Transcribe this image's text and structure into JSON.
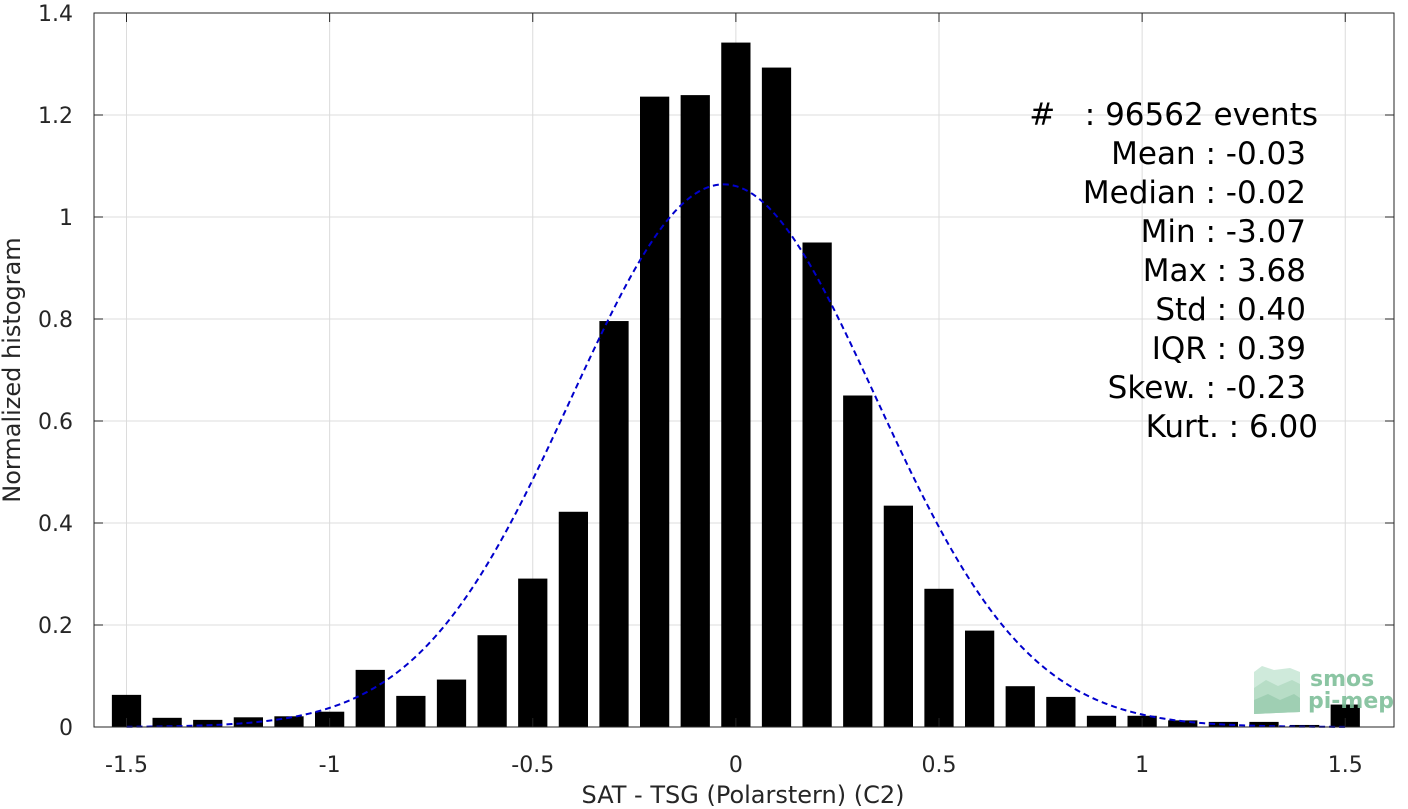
{
  "chart_data": {
    "type": "bar",
    "xlabel": "SAT - TSG (Polarstern) (C2)",
    "ylabel": "Normalized histogram",
    "xlim": [
      -1.58,
      1.62
    ],
    "ylim": [
      0,
      1.4
    ],
    "xticks": [
      -1.5,
      -1,
      -0.5,
      0,
      0.5,
      1,
      1.5
    ],
    "xtick_labels": [
      "-1.5",
      "-1",
      "-0.5",
      "0",
      "0.5",
      "1",
      "1.5"
    ],
    "yticks": [
      0,
      0.2,
      0.4,
      0.6,
      0.8,
      1,
      1.2,
      1.4
    ],
    "ytick_labels": [
      "0",
      "0.2",
      "0.4",
      "0.6",
      "0.8",
      "1",
      "1.2",
      "1.4"
    ],
    "grid": true,
    "bar_color": "#000000",
    "fit_color": "#0000cc",
    "bin_width": 0.1,
    "x": [
      -1.5,
      -1.4,
      -1.3,
      -1.2,
      -1.1,
      -1.0,
      -0.9,
      -0.8,
      -0.7,
      -0.6,
      -0.5,
      -0.4,
      -0.3,
      -0.2,
      -0.1,
      0.0,
      0.1,
      0.2,
      0.3,
      0.4,
      0.5,
      0.6,
      0.7,
      0.8,
      0.9,
      1.0,
      1.1,
      1.2,
      1.3,
      1.4,
      1.5
    ],
    "values": [
      0.063,
      0.018,
      0.014,
      0.019,
      0.021,
      0.03,
      0.112,
      0.061,
      0.093,
      0.18,
      0.291,
      0.422,
      0.796,
      1.236,
      1.239,
      1.342,
      1.293,
      0.95,
      0.65,
      0.434,
      0.271,
      0.189,
      0.08,
      0.059,
      0.022,
      0.022,
      0.013,
      0.01,
      0.01,
      0.004,
      0.044
    ],
    "fit": {
      "type": "normal",
      "mean": -0.03,
      "std": 0.375,
      "peak": 1.064,
      "style": "dashed"
    },
    "stats_box": {
      "lines": [
        "#   : 96562 events",
        "Mean : -0.03",
        "Median : -0.02",
        "Min : -3.07",
        "Max : 3.68",
        "Std : 0.40",
        "IQR : 0.39",
        "Skew. : -0.23",
        "Kurt. : 6.00"
      ]
    }
  },
  "logo": {
    "line1": "smos",
    "line2": "pi-mep"
  }
}
